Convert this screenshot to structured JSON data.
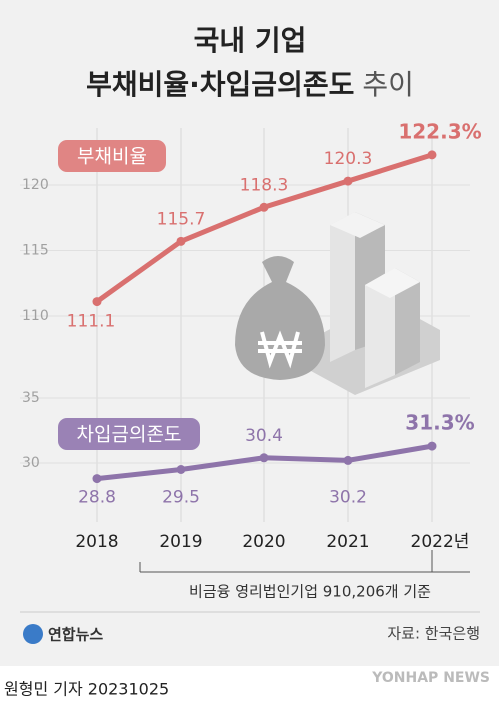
{
  "header": {
    "line1": "국내 기업",
    "line2": "부채비율·차입금의존도",
    "line2_suffix": "추이"
  },
  "chart_data": [
    {
      "type": "line",
      "ylim": [
        108,
        124
      ],
      "yticks": [
        110,
        115,
        120
      ],
      "grid": true,
      "series": [
        {
          "name": "부채비율",
          "color": "#d9706f",
          "values": [
            111.1,
            115.7,
            118.3,
            120.3,
            122.3
          ],
          "value_labels": [
            "111.1",
            "115.7",
            "118.3",
            "120.3",
            "122.3%"
          ]
        }
      ]
    },
    {
      "type": "line",
      "ylim": [
        27.5,
        36
      ],
      "yticks": [
        30,
        35
      ],
      "grid": true,
      "categories": [
        "2018",
        "2019",
        "2020",
        "2021",
        "2022년"
      ],
      "series": [
        {
          "name": "차입금의존도",
          "color": "#8e74aa",
          "values": [
            28.8,
            29.5,
            30.4,
            30.2,
            31.3
          ],
          "value_labels": [
            "28.8",
            "29.5",
            "30.4",
            "30.2",
            "31.3%"
          ]
        }
      ]
    }
  ],
  "note": "비금융 영리법인기업 910,206개 기준",
  "logo": "연합뉴스",
  "source": "자료: 한국은행",
  "byline": "원형민 기자  20231025",
  "watermark": "YONHAP NEWS"
}
